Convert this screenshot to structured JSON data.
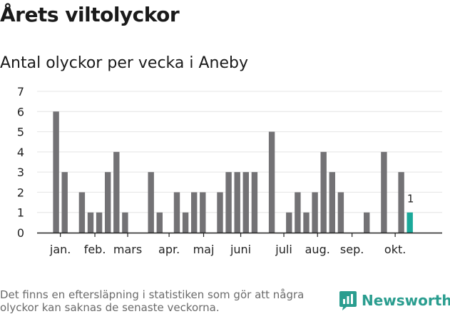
{
  "title": "Årets viltolyckor",
  "subtitle": "Antal olyckor per vecka i Aneby",
  "footnote": "Det finns en eftersläpning i statistiken som gör att några olyckor kan saknas de senaste veckorna.",
  "brand": "Newsworthy",
  "colors": {
    "bar": "#737275",
    "highlight": "#1ba99a",
    "grid": "#e4e4e4",
    "axis": "#222222",
    "brand": "#2a9d8f"
  },
  "chart_data": {
    "type": "bar",
    "title": "Årets viltolyckor",
    "subtitle": "Antal olyckor per vecka i Aneby",
    "xlabel": "",
    "ylabel": "",
    "ylim": [
      0,
      7
    ],
    "yticks": [
      0,
      1,
      2,
      3,
      4,
      5,
      6,
      7
    ],
    "grid": true,
    "x": [
      1,
      2,
      3,
      4,
      5,
      6,
      7,
      8,
      9,
      10,
      11,
      12,
      13,
      14,
      15,
      16,
      17,
      18,
      19,
      20,
      21,
      22,
      23,
      24,
      25,
      26,
      27,
      28,
      29,
      30,
      31,
      32,
      33,
      34,
      35,
      36,
      37,
      38,
      39,
      40,
      41,
      42
    ],
    "values": [
      6,
      3,
      0,
      2,
      1,
      1,
      3,
      4,
      1,
      0,
      0,
      3,
      1,
      0,
      2,
      1,
      2,
      2,
      0,
      2,
      3,
      3,
      3,
      3,
      0,
      5,
      0,
      1,
      2,
      1,
      2,
      4,
      3,
      2,
      0,
      0,
      1,
      0,
      4,
      0,
      3,
      1
    ],
    "highlight_index": 41,
    "highlight_label": "1",
    "month_labels": [
      {
        "label": "jan.",
        "week": 1.5
      },
      {
        "label": "feb.",
        "week": 5.5
      },
      {
        "label": "mars",
        "week": 9.3
      },
      {
        "label": "apr.",
        "week": 14.1
      },
      {
        "label": "maj",
        "week": 18.1
      },
      {
        "label": "juni",
        "week": 22.4
      },
      {
        "label": "juli",
        "week": 27.4
      },
      {
        "label": "aug.",
        "week": 31.3
      },
      {
        "label": "sep.",
        "week": 35.3
      },
      {
        "label": "okt.",
        "week": 40.3
      }
    ]
  }
}
